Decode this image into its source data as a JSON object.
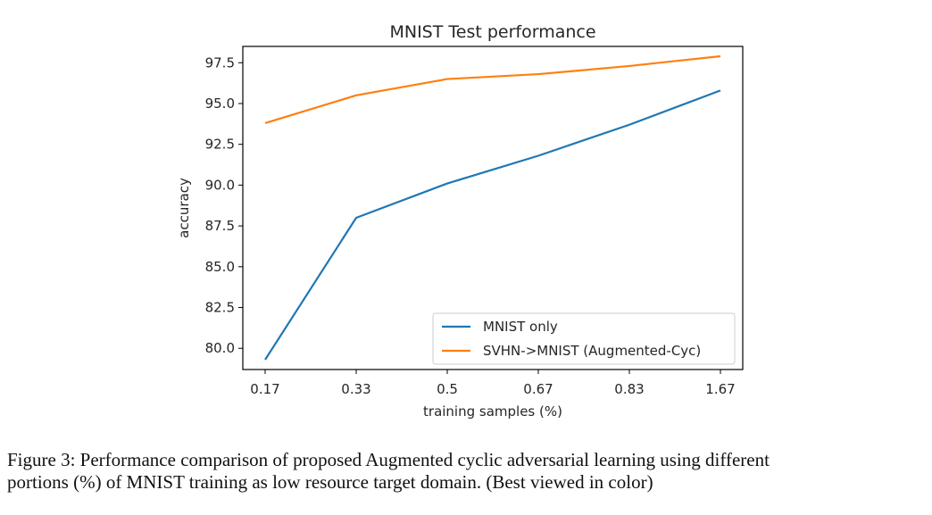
{
  "chart_data": {
    "type": "line",
    "title": "MNIST Test performance",
    "xlabel": "training samples (%)",
    "ylabel": "accuracy",
    "categories": [
      "0.17",
      "0.33",
      "0.5",
      "0.67",
      "0.83",
      "1.67"
    ],
    "yticks": [
      "80.0",
      "82.5",
      "85.0",
      "87.5",
      "90.0",
      "92.5",
      "95.0",
      "97.5"
    ],
    "ylim": [
      78.7,
      98.5
    ],
    "grid": false,
    "legend_position": "lower-right",
    "series": [
      {
        "name": "MNIST only",
        "color": "#1f77b4",
        "values": [
          79.3,
          88.0,
          90.1,
          91.8,
          93.7,
          95.8
        ]
      },
      {
        "name": "SVHN->MNIST (Augmented-Cyc)",
        "color": "#ff7f0e",
        "values": [
          93.8,
          95.5,
          96.5,
          96.8,
          97.3,
          97.9
        ]
      }
    ]
  },
  "caption": {
    "line1": "Figure 3: Performance comparison of proposed Augmented cyclic adversarial learning using different",
    "line2": "portions (%) of MNIST training as low resource target domain. (Best viewed in color)"
  }
}
